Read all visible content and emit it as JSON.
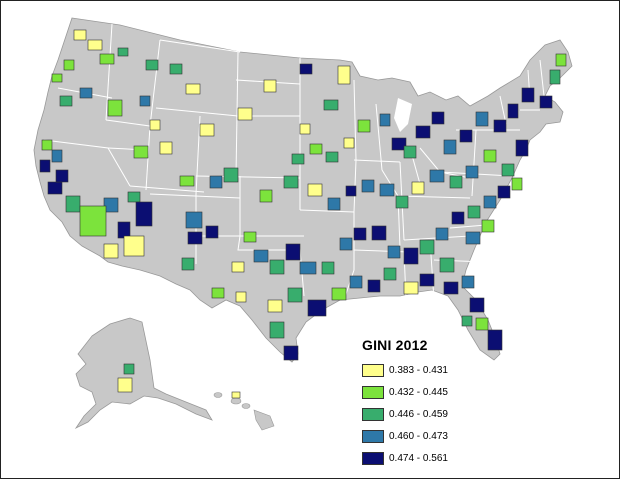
{
  "legend": {
    "title": "GINI 2012",
    "classes": [
      {
        "label": "0.383 - 0.431",
        "color": "#ffff8c"
      },
      {
        "label": "0.432 - 0.445",
        "color": "#7ce33c"
      },
      {
        "label": "0.446 - 0.459",
        "color": "#38ad6d"
      },
      {
        "label": "0.460 - 0.473",
        "color": "#2e78a8"
      },
      {
        "label": "0.474 - 0.561",
        "color": "#0b0e72"
      }
    ]
  },
  "colors": {
    "land": "#c8c8c8",
    "state_border": "#ffffff",
    "outline": "#444444",
    "frame": "#222222",
    "background": "#ffffff"
  }
}
